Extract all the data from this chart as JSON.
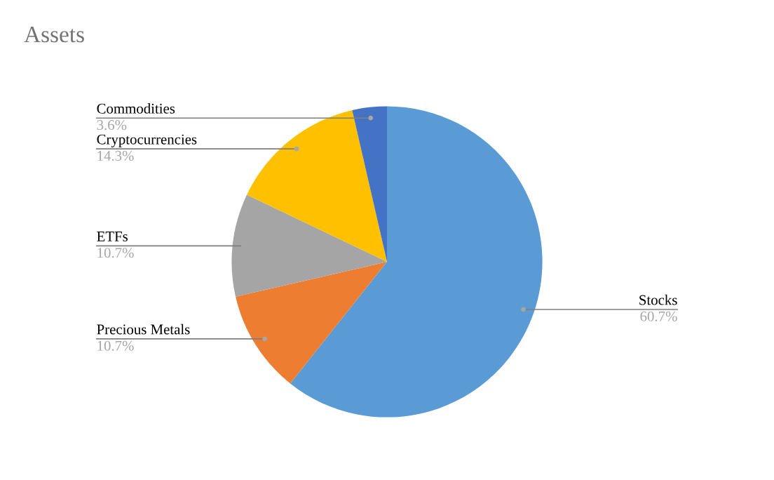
{
  "chart_data": {
    "type": "pie",
    "title": "Assets",
    "categories": [
      "Stocks",
      "Precious Metals",
      "ETFs",
      "Cryptocurrencies",
      "Commodities"
    ],
    "values": [
      60.7,
      10.7,
      10.7,
      14.3,
      3.6
    ],
    "colors": [
      "#5b9bd5",
      "#ed7d31",
      "#a5a5a5",
      "#ffc000",
      "#4472c4"
    ],
    "value_labels": [
      "60.7%",
      "10.7%",
      "10.7%",
      "14.3%",
      "3.6%"
    ]
  }
}
